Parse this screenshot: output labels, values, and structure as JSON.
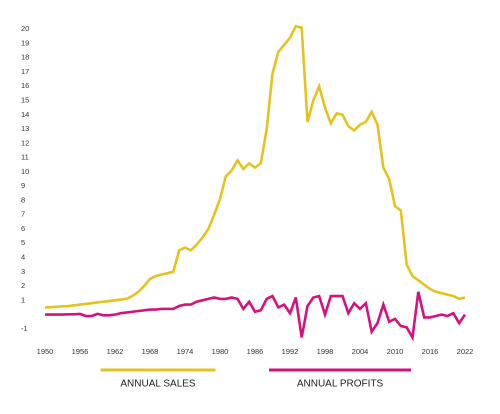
{
  "chart_data": {
    "type": "line",
    "x": [
      1950,
      1951,
      1952,
      1953,
      1954,
      1955,
      1956,
      1957,
      1958,
      1959,
      1960,
      1961,
      1962,
      1963,
      1964,
      1965,
      1966,
      1967,
      1968,
      1969,
      1970,
      1971,
      1972,
      1973,
      1974,
      1975,
      1976,
      1977,
      1978,
      1979,
      1980,
      1981,
      1982,
      1983,
      1984,
      1985,
      1986,
      1987,
      1988,
      1989,
      1990,
      1991,
      1992,
      1993,
      1994,
      1995,
      1996,
      1997,
      1998,
      1999,
      2000,
      2001,
      2002,
      2003,
      2004,
      2005,
      2006,
      2007,
      2008,
      2009,
      2010,
      2011,
      2012,
      2013,
      2014,
      2015,
      2016,
      2017,
      2018,
      2019,
      2020,
      2021,
      2022
    ],
    "series": [
      {
        "name": "ANNUAL SALES",
        "color": "#e6c21f",
        "values": [
          0.5,
          0.52,
          0.55,
          0.58,
          0.6,
          0.65,
          0.7,
          0.75,
          0.8,
          0.85,
          0.9,
          0.95,
          1.0,
          1.05,
          1.1,
          1.3,
          1.6,
          2.0,
          2.5,
          2.7,
          2.8,
          2.9,
          3.0,
          4.5,
          4.7,
          4.5,
          4.9,
          5.4,
          6.0,
          7.0,
          8.1,
          9.7,
          10.1,
          10.8,
          10.2,
          10.6,
          10.3,
          10.6,
          13.0,
          16.9,
          18.4,
          18.9,
          19.4,
          20.2,
          20.1,
          13.5,
          15.0,
          16.0,
          14.5,
          13.4,
          14.1,
          14.0,
          13.2,
          12.9,
          13.3,
          13.5,
          14.2,
          13.3,
          10.3,
          9.5,
          7.6,
          7.3,
          3.5,
          2.7,
          2.4,
          2.1,
          1.8,
          1.6,
          1.5,
          1.4,
          1.3,
          1.1,
          1.2
        ]
      },
      {
        "name": "ANNUAL PROFITS",
        "color": "#d4127e",
        "values": [
          0,
          0,
          0,
          0,
          0.02,
          0.02,
          0.05,
          -0.1,
          -0.1,
          0.05,
          -0.05,
          -0.05,
          0,
          0.1,
          0.15,
          0.2,
          0.25,
          0.3,
          0.35,
          0.35,
          0.4,
          0.4,
          0.4,
          0.6,
          0.7,
          0.7,
          0.9,
          1.0,
          1.1,
          1.2,
          1.1,
          1.1,
          1.2,
          1.1,
          0.4,
          0.9,
          0.2,
          0.3,
          1.1,
          1.3,
          0.5,
          0.7,
          0.1,
          1.2,
          -1.6,
          0.6,
          1.2,
          1.3,
          0,
          1.3,
          1.3,
          1.3,
          0.1,
          0.8,
          0.4,
          0.8,
          -1.2,
          -0.6,
          0.7,
          -0.5,
          -0.3,
          -0.8,
          -0.9,
          -1.6,
          1.6,
          -0.2,
          -0.2,
          -0.1,
          0,
          -0.1,
          0.1,
          -0.6,
          0
        ]
      }
    ],
    "xlim": [
      1950,
      2022
    ],
    "xticks": [
      1950,
      1956,
      1962,
      1968,
      1974,
      1980,
      1986,
      1992,
      1998,
      2004,
      2010,
      2016,
      2022
    ],
    "ylim": [
      -1.5,
      20.5
    ],
    "yticks": [
      20,
      19,
      18,
      17,
      16,
      15,
      14,
      13,
      12,
      11,
      10,
      9,
      8,
      7,
      6,
      5,
      4,
      3,
      2,
      1,
      -1
    ],
    "grid": false,
    "legend": "bottom"
  }
}
